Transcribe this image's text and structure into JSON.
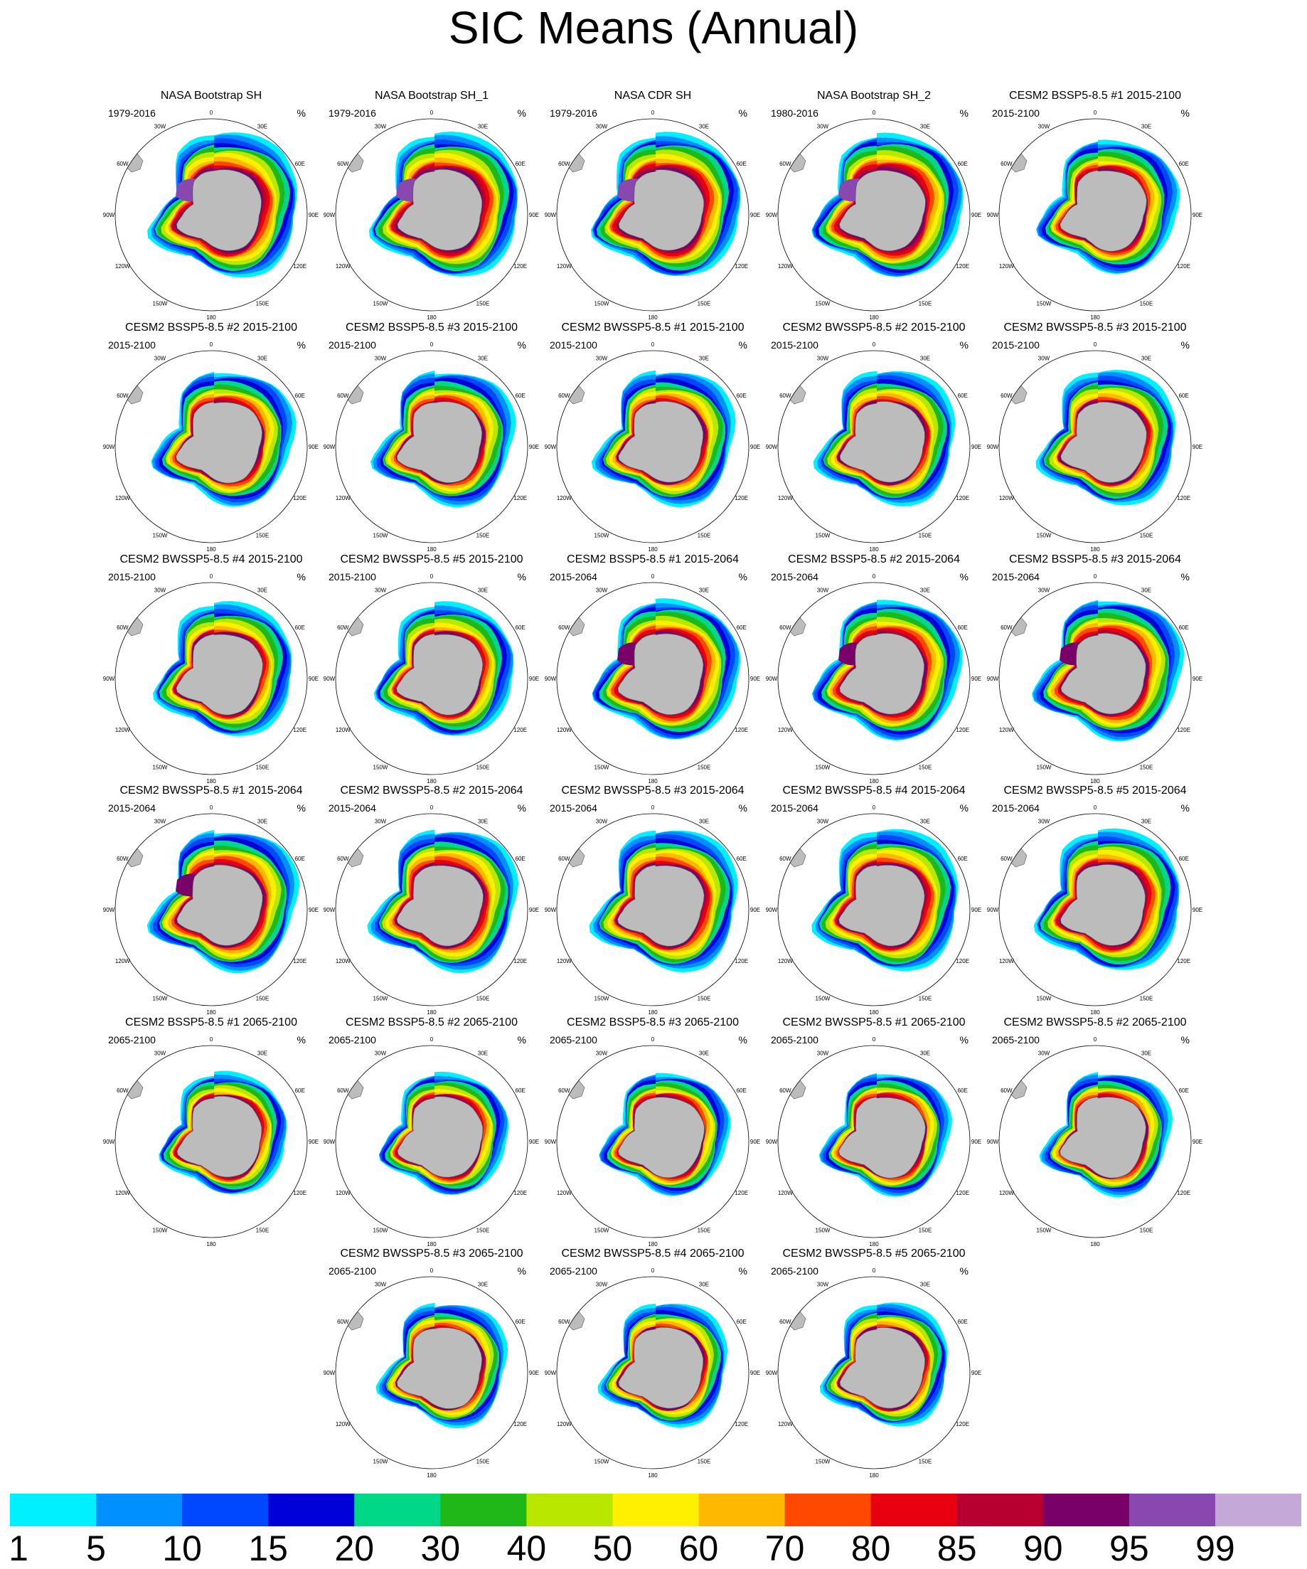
{
  "title": "SIC Means (Annual)",
  "chart_data": {
    "type": "polar stereographic filled contour maps",
    "variable": "Sea ice concentration (Antarctic), annual mean",
    "units": "%",
    "grid_labels": {
      "meridians": [
        "0",
        "30E",
        "60E",
        "90E",
        "120E",
        "150E",
        "180",
        "150W",
        "120W",
        "90W",
        "60W",
        "30W"
      ]
    },
    "colorbar": {
      "levels": [
        "1",
        "5",
        "10",
        "15",
        "20",
        "30",
        "40",
        "50",
        "60",
        "70",
        "80",
        "85",
        "90",
        "95",
        "99"
      ],
      "colors": [
        "#00f0ff",
        "#0090ff",
        "#0048ff",
        "#0000d8",
        "#00d888",
        "#20b818",
        "#b8e800",
        "#fff000",
        "#ffb800",
        "#ff4800",
        "#e80010",
        "#b80030",
        "#780068",
        "#8848b0",
        "#c4a8d8"
      ]
    },
    "panels": [
      {
        "title": "NASA Bootstrap SH",
        "period": "1979-2016",
        "units": "%",
        "extent": "high",
        "purple": true
      },
      {
        "title": "NASA Bootstrap SH_1",
        "period": "1979-2016",
        "units": "%",
        "extent": "high",
        "purple": true
      },
      {
        "title": "NASA CDR SH",
        "period": "1979-2016",
        "units": "%",
        "extent": "high",
        "purple": true
      },
      {
        "title": "NASA Bootstrap SH_2",
        "period": "1980-2016",
        "units": "%",
        "extent": "high",
        "purple": true
      },
      {
        "title": "CESM2 BSSP5-8.5 #1 2015-2100",
        "period": "2015-2100",
        "units": "%",
        "extent": "mid",
        "purple": false
      },
      {
        "title": "CESM2 BSSP5-8.5 #2 2015-2100",
        "period": "2015-2100",
        "units": "%",
        "extent": "mid",
        "purple": false
      },
      {
        "title": "CESM2 BSSP5-8.5 #3 2015-2100",
        "period": "2015-2100",
        "units": "%",
        "extent": "mid",
        "purple": false
      },
      {
        "title": "CESM2 BWSSP5-8.5 #1 2015-2100",
        "period": "2015-2100",
        "units": "%",
        "extent": "mid",
        "purple": false
      },
      {
        "title": "CESM2 BWSSP5-8.5 #2 2015-2100",
        "period": "2015-2100",
        "units": "%",
        "extent": "mid",
        "purple": false
      },
      {
        "title": "CESM2 BWSSP5-8.5 #3 2015-2100",
        "period": "2015-2100",
        "units": "%",
        "extent": "mid",
        "purple": false
      },
      {
        "title": "CESM2 BWSSP5-8.5 #4 2015-2100",
        "period": "2015-2100",
        "units": "%",
        "extent": "mid",
        "purple": false
      },
      {
        "title": "CESM2 BWSSP5-8.5 #5 2015-2100",
        "period": "2015-2100",
        "units": "%",
        "extent": "mid",
        "purple": false
      },
      {
        "title": "CESM2 BSSP5-8.5 #1 2015-2064",
        "period": "2015-2064",
        "units": "%",
        "extent": "midhigh",
        "purple": true
      },
      {
        "title": "CESM2 BSSP5-8.5 #2 2015-2064",
        "period": "2015-2064",
        "units": "%",
        "extent": "midhigh",
        "purple": true
      },
      {
        "title": "CESM2 BSSP5-8.5 #3 2015-2064",
        "period": "2015-2064",
        "units": "%",
        "extent": "midhigh",
        "purple": true
      },
      {
        "title": "CESM2 BWSSP5-8.5 #1 2015-2064",
        "period": "2015-2064",
        "units": "%",
        "extent": "midhigh",
        "purple": true
      },
      {
        "title": "CESM2 BWSSP5-8.5 #2 2015-2064",
        "period": "2015-2064",
        "units": "%",
        "extent": "midhigh",
        "purple": false
      },
      {
        "title": "CESM2 BWSSP5-8.5 #3 2015-2064",
        "period": "2015-2064",
        "units": "%",
        "extent": "midhigh",
        "purple": false
      },
      {
        "title": "CESM2 BWSSP5-8.5 #4 2015-2064",
        "period": "2015-2064",
        "units": "%",
        "extent": "midhigh",
        "purple": false
      },
      {
        "title": "CESM2 BWSSP5-8.5 #5 2015-2064",
        "period": "2015-2064",
        "units": "%",
        "extent": "midhigh",
        "purple": false
      },
      {
        "title": "CESM2 BSSP5-8.5 #1 2065-2100",
        "period": "2065-2100",
        "units": "%",
        "extent": "low",
        "purple": false
      },
      {
        "title": "CESM2 BSSP5-8.5 #2 2065-2100",
        "period": "2065-2100",
        "units": "%",
        "extent": "low",
        "purple": false
      },
      {
        "title": "CESM2 BSSP5-8.5 #3 2065-2100",
        "period": "2065-2100",
        "units": "%",
        "extent": "low",
        "purple": false
      },
      {
        "title": "CESM2 BWSSP5-8.5 #1 2065-2100",
        "period": "2065-2100",
        "units": "%",
        "extent": "low",
        "purple": false
      },
      {
        "title": "CESM2 BWSSP5-8.5 #2 2065-2100",
        "period": "2065-2100",
        "units": "%",
        "extent": "low",
        "purple": false
      },
      {
        "title": "CESM2 BWSSP5-8.5 #3 2065-2100",
        "period": "2065-2100",
        "units": "%",
        "extent": "low",
        "purple": false
      },
      {
        "title": "CESM2 BWSSP5-8.5 #4 2065-2100",
        "period": "2065-2100",
        "units": "%",
        "extent": "low",
        "purple": false
      },
      {
        "title": "CESM2 BWSSP5-8.5 #5 2065-2100",
        "period": "2065-2100",
        "units": "%",
        "extent": "low",
        "purple": false
      }
    ]
  }
}
